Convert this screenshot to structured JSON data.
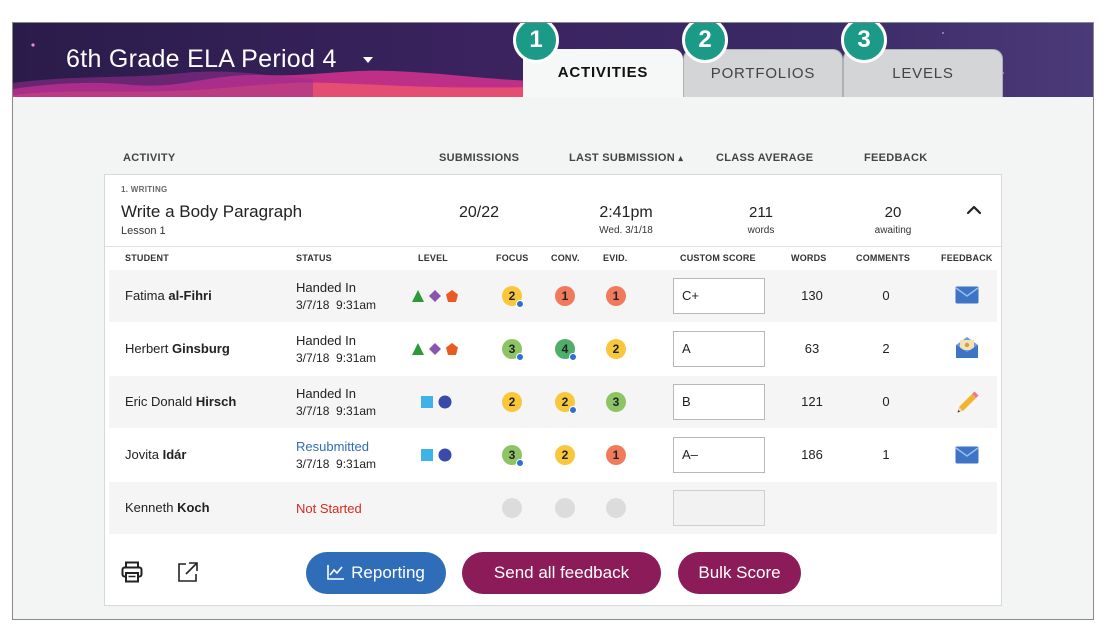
{
  "header": {
    "class_title": "6th Grade ELA Period 4"
  },
  "tabs": [
    {
      "number": "1",
      "label": "ACTIVITIES",
      "active": true
    },
    {
      "number": "2",
      "label": "PORTFOLIOS",
      "active": false
    },
    {
      "number": "3",
      "label": "LEVELS",
      "active": false
    }
  ],
  "columns": {
    "activity": "ACTIVITY",
    "submissions": "SUBMISSIONS",
    "last_submission": "LAST SUBMISSION",
    "sort_arrow": "▴",
    "class_average": "CLASS AVERAGE",
    "feedback": "FEEDBACK"
  },
  "activity": {
    "category": "1. WRITING",
    "title": "Write a Body Paragraph",
    "lesson": "Lesson 1",
    "submissions": "20/22",
    "last_time": "2:41pm",
    "last_date": "Wed. 3/1/18",
    "average_value": "211",
    "average_unit": "words",
    "feedback_value": "20",
    "feedback_unit": "awaiting"
  },
  "student_columns": {
    "student": "STUDENT",
    "status": "STATUS",
    "level": "LEVEL",
    "focus": "FOCUS",
    "conv": "CONV.",
    "evid": "EVID.",
    "custom_score": "CUSTOM SCORE",
    "words": "WORDS",
    "comments": "COMMENTS",
    "feedback": "FEEDBACK"
  },
  "students": [
    {
      "first": "Fatima",
      "last": "al-Fihri",
      "status": "Handed In",
      "date": "3/7/18  9:31am",
      "focus": "2",
      "conv": "1",
      "evid": "1",
      "score": "C+",
      "words": "130",
      "comments": "0",
      "feedback_icon": "envelope-icon"
    },
    {
      "first": "Herbert",
      "last": "Ginsburg",
      "status": "Handed In",
      "date": "3/7/18  9:31am",
      "focus": "3",
      "conv": "4",
      "evid": "2",
      "score": "A",
      "words": "63",
      "comments": "2",
      "feedback_icon": "open-envelope-icon"
    },
    {
      "first": "Eric Donald",
      "last": "Hirsch",
      "status": "Handed In",
      "date": "3/7/18  9:31am",
      "focus": "2",
      "conv": "2",
      "evid": "3",
      "score": "B",
      "words": "121",
      "comments": "0",
      "feedback_icon": "pencil-icon"
    },
    {
      "first": "Jovita",
      "last": "Idár",
      "status": "Resubmitted",
      "date": "3/7/18  9:31am",
      "focus": "3",
      "conv": "2",
      "evid": "1",
      "score": "A–",
      "words": "186",
      "comments": "1",
      "feedback_icon": "envelope-icon"
    },
    {
      "first": "Kenneth",
      "last": "Koch",
      "status": "Not Started",
      "date": "",
      "focus": "",
      "conv": "",
      "evid": "",
      "score": "",
      "words": "",
      "comments": "",
      "feedback_icon": ""
    }
  ],
  "colors": {
    "score_1": "#f07b5c",
    "score_2": "#f8c73c",
    "score_3": "#8dc564",
    "score_4": "#4fae6a",
    "empty": "#dcdcdc",
    "badge": "#1b9a87",
    "reporting": "#2f6db8",
    "primary": "#8c1b5a",
    "resubmitted": "#2f6db8",
    "not_started": "#d52b1e"
  },
  "footer": {
    "print_icon": "printer-icon",
    "export_icon": "external-link-icon",
    "reporting": "Reporting",
    "send_all": "Send all feedback",
    "bulk_score": "Bulk Score"
  }
}
